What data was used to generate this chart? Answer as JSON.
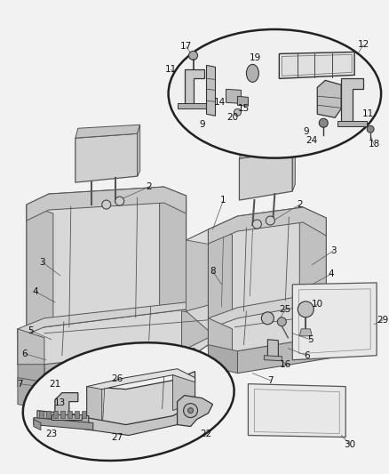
{
  "bg_color": "#f0f0f0",
  "seat_fill": "#d8d8d8",
  "seat_edge": "#555555",
  "bolster_fill": "#c0c0c0",
  "headrest_fill": "#d0d0d0",
  "base_fill": "#b8b8b8",
  "ellipse_fill": "#f0f0f0",
  "ellipse_edge": "#222222",
  "rect_fill": "#e8e8e8",
  "rect_edge": "#555555",
  "label_fs": 7.5,
  "line_color": "#444444"
}
